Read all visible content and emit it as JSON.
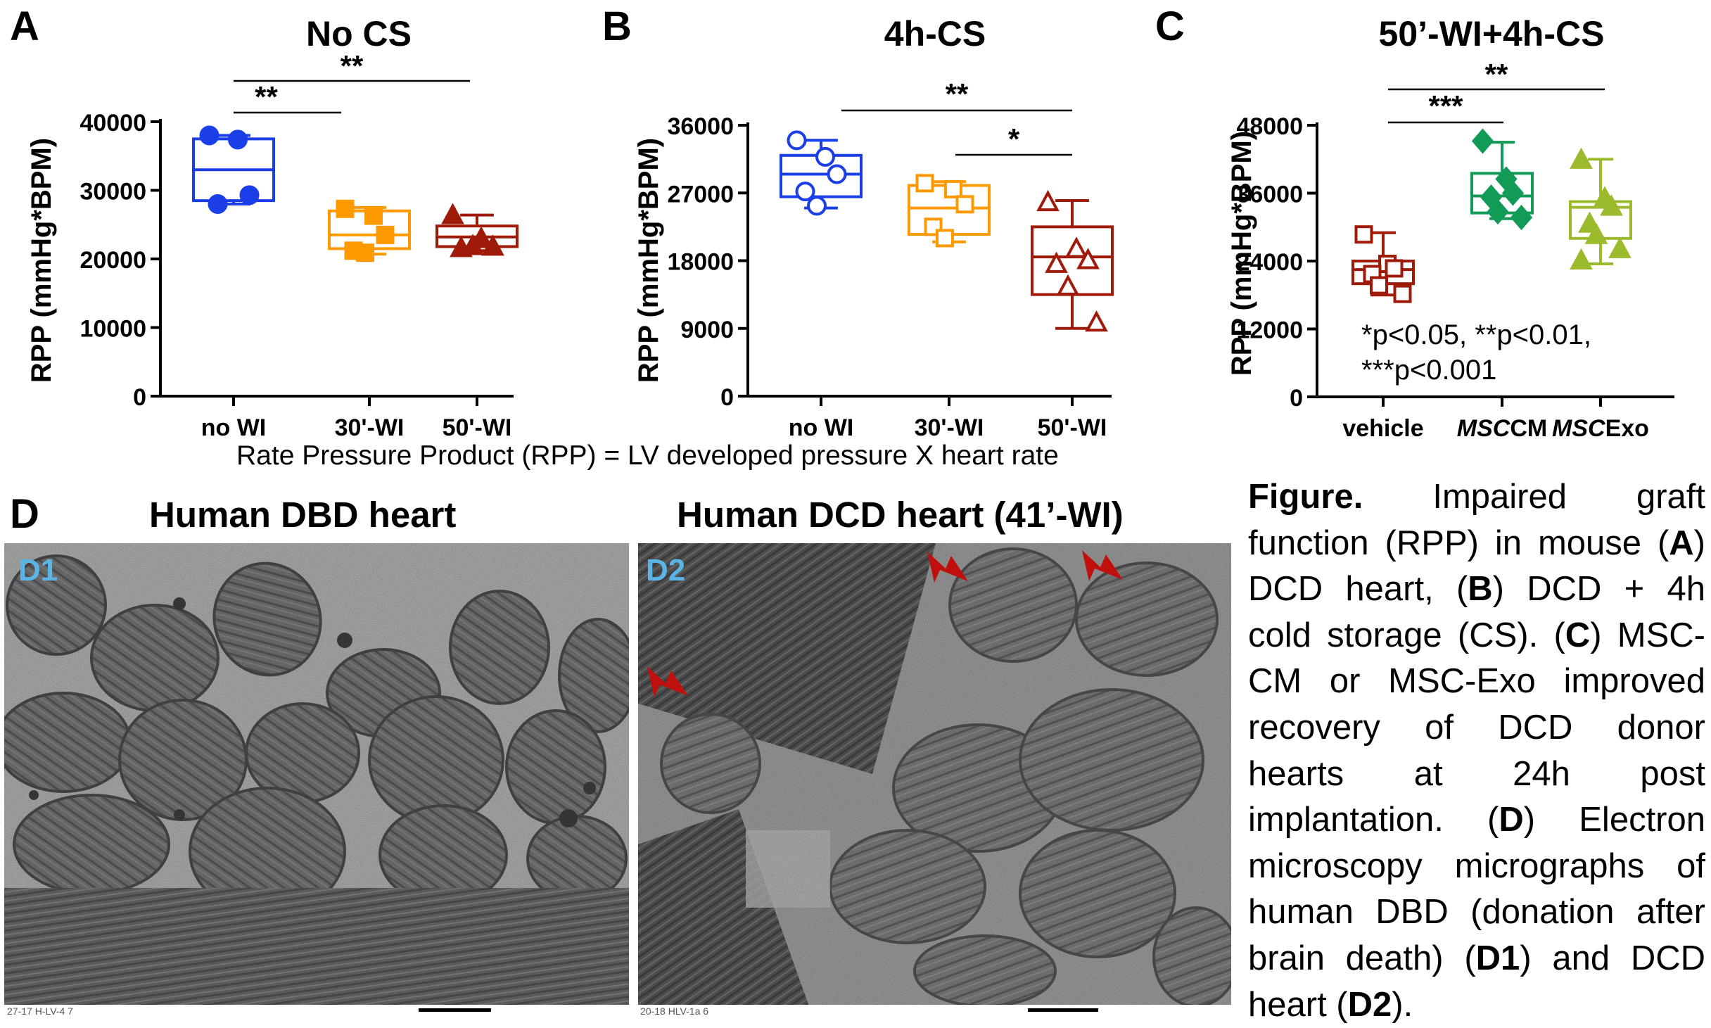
{
  "panel_letters": {
    "a": "A",
    "b": "B",
    "c": "C",
    "d": "D"
  },
  "colors": {
    "blue": "#1a3ee8",
    "orange": "#ff9900",
    "darkred": "#a01a0a",
    "green": "#129a57",
    "lime": "#9cbb2c",
    "em_label": "#5ab4e6",
    "arrow": "#c0100d"
  },
  "formula": "Rate Pressure Product (RPP) = LV developed pressure X heart rate",
  "chart_data": [
    {
      "type": "box",
      "title": "No CS",
      "ylabel": "RPP (mmHg*BPM)",
      "xlabel": "",
      "ylim": [
        0,
        40000
      ],
      "yticks": [
        "0",
        "10000",
        "20000",
        "30000",
        "40000"
      ],
      "ytick_values": [
        0,
        10000,
        20000,
        30000,
        40000
      ],
      "categories": [
        "no WI",
        "30'-WI",
        "50'-WI"
      ],
      "series": [
        {
          "name": "no WI",
          "color": "#1a3ee8",
          "marker": "circle-filled",
          "min": 28000,
          "q1": 28500,
          "median": 33000,
          "q3": 37500,
          "max": 38000,
          "points": [
            38000,
            37400,
            29300,
            28000
          ]
        },
        {
          "name": "30'-WI",
          "color": "#ff9900",
          "marker": "square-filled",
          "min": 20700,
          "q1": 21500,
          "median": 23500,
          "q3": 27000,
          "max": 27500,
          "points": [
            27300,
            26300,
            23500,
            21200,
            20900
          ]
        },
        {
          "name": "50'-WI",
          "color": "#a01a0a",
          "marker": "triangle-filled",
          "min": 21200,
          "q1": 21800,
          "median": 23200,
          "q3": 24800,
          "max": 26400,
          "points": [
            26300,
            22900,
            21700,
            21500,
            21800
          ]
        }
      ],
      "significance": [
        {
          "from": 0,
          "to": 1,
          "label": "**"
        },
        {
          "from": 0,
          "to": 2,
          "label": "**"
        }
      ]
    },
    {
      "type": "box",
      "title": "4h-CS",
      "ylabel": "RPP (mmHg*BPM)",
      "xlabel": "",
      "ylim": [
        0,
        36000
      ],
      "yticks": [
        "0",
        "9000",
        "18000",
        "27000",
        "36000"
      ],
      "ytick_values": [
        0,
        9000,
        18000,
        27000,
        36000
      ],
      "categories": [
        "no WI",
        "30'-WI",
        "50'-WI"
      ],
      "series": [
        {
          "name": "no WI",
          "color": "#1a3ee8",
          "marker": "circle-open",
          "min": 25000,
          "q1": 26500,
          "median": 29500,
          "q3": 32000,
          "max": 34000,
          "points": [
            34000,
            31800,
            29500,
            27200,
            25300
          ]
        },
        {
          "name": "30'-WI",
          "color": "#ff9900",
          "marker": "square-open",
          "min": 20500,
          "q1": 21500,
          "median": 25000,
          "q3": 28000,
          "max": 28500,
          "points": [
            28300,
            27500,
            25500,
            22500,
            21000
          ]
        },
        {
          "name": "50'-WI",
          "color": "#a01a0a",
          "marker": "triangle-open",
          "min": 9000,
          "q1": 13500,
          "median": 18500,
          "q3": 22500,
          "max": 26000,
          "points": [
            25700,
            19500,
            18000,
            17500,
            14500,
            9700
          ]
        }
      ],
      "significance": [
        {
          "from": 0,
          "to": 2,
          "label": "**"
        },
        {
          "from": 1,
          "to": 2,
          "label": "*"
        }
      ]
    },
    {
      "type": "box",
      "title": "50’-WI+4h-CS",
      "ylabel": "RPP (mmHg*BPM)",
      "xlabel": "",
      "ylim": [
        0,
        48000
      ],
      "yticks": [
        "0",
        "12000",
        "24000",
        "36000",
        "48000"
      ],
      "ytick_values": [
        0,
        12000,
        24000,
        36000,
        48000
      ],
      "categories": [
        "vehicle",
        "MSCCM",
        "MSCExo"
      ],
      "series": [
        {
          "name": "vehicle",
          "color": "#a01a0a",
          "marker": "square-open",
          "min": 18000,
          "q1": 20000,
          "median": 22500,
          "q3": 24000,
          "max": 29000,
          "points": [
            28700,
            23500,
            22700,
            21700,
            19700,
            18200
          ]
        },
        {
          "name": "MSCCM",
          "color": "#129a57",
          "marker": "diamond-filled",
          "min": 31500,
          "q1": 32500,
          "median": 35500,
          "q3": 39500,
          "max": 45000,
          "points": [
            45200,
            38500,
            36000,
            35300,
            32700,
            31700
          ]
        },
        {
          "name": "MSCExo",
          "color": "#9cbb2c",
          "marker": "triangle-filled",
          "min": 23500,
          "q1": 28000,
          "median": 33500,
          "q3": 34500,
          "max": 42000,
          "points": [
            41800,
            35000,
            33500,
            30500,
            28500,
            26000,
            24000
          ]
        }
      ],
      "significance": [
        {
          "from": 0,
          "to": 1,
          "label": "***"
        },
        {
          "from": 0,
          "to": 2,
          "label": "**"
        }
      ],
      "footnote_line1": "*p<0.05, **p<0.01,",
      "footnote_line2": "***p<0.001"
    }
  ],
  "micrographs": {
    "d1": {
      "title": "Human DBD heart",
      "label": "D1",
      "sub": "27-17  H-LV-4  7"
    },
    "d2": {
      "title": "Human DCD heart (41’-WI)",
      "label": "D2",
      "sub": "20-18  HLV-1a  6"
    }
  },
  "caption": {
    "title": "Figure.",
    "p1": " Impaired graft function (RPP) in mouse (",
    "a": "A",
    "p2": ") DCD heart, (",
    "b": "B",
    "p3": ") DCD + 4h cold storage (CS). (",
    "c": "C",
    "p4": ") MSC-CM or MSC-Exo improved recovery of DCD donor hearts at 24h post implantation. (",
    "d": "D",
    "p5": ") Electron microscopy micrographs of human DBD (donation after brain death) (",
    "d1": "D1",
    "p6": ") and DCD heart (",
    "d2": "D2",
    "p7": ")."
  }
}
